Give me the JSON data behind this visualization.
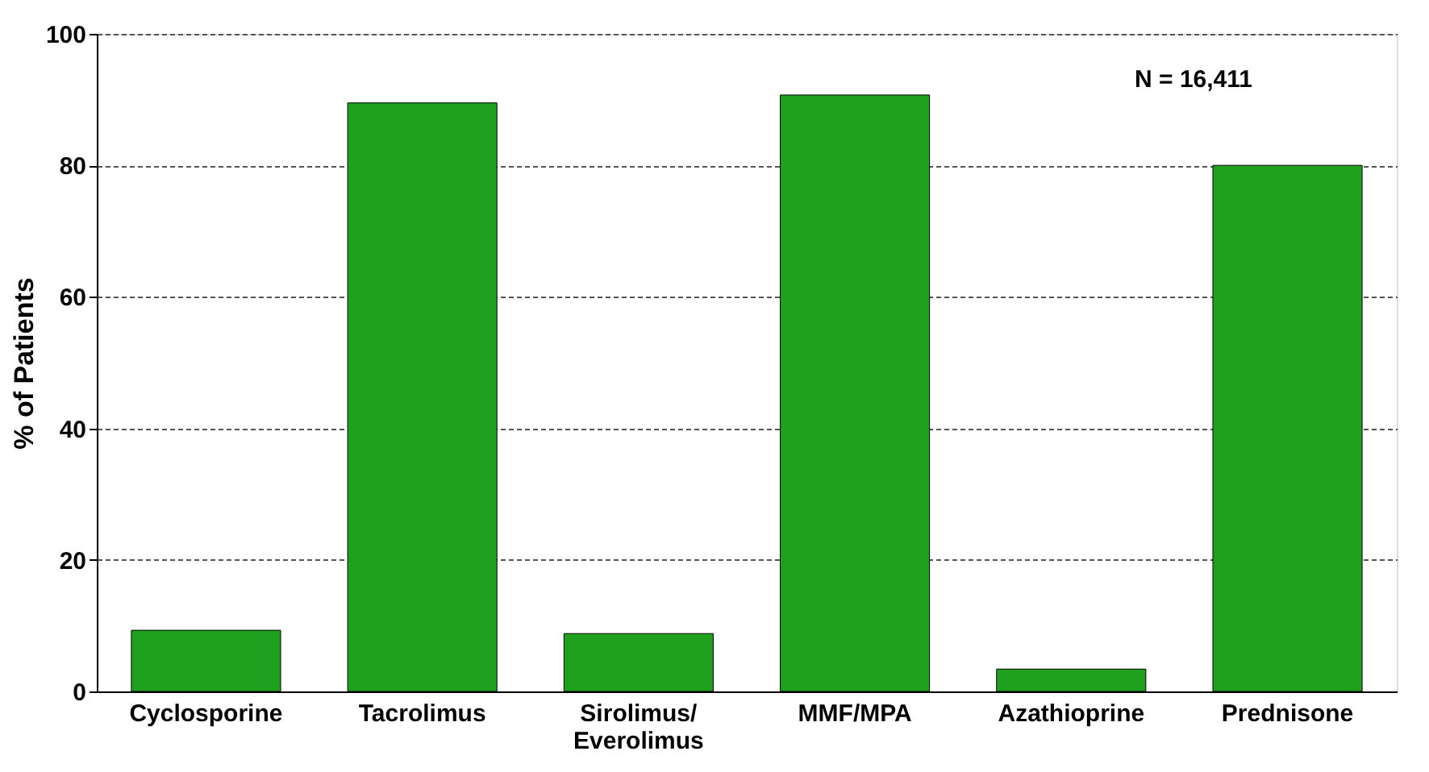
{
  "chart_data": {
    "type": "bar",
    "ylabel": "% of Patients",
    "categories": [
      "Cyclosporine",
      "Tacrolimus",
      "Sirolimus/ Everolimus",
      "MMF/MPA",
      "Azathioprine",
      "Prednisone"
    ],
    "values": [
      9.3,
      89.5,
      8.8,
      90.7,
      3.4,
      80
    ],
    "color": "#1fa01f",
    "ylim": [
      0,
      100
    ],
    "yticks": [
      0,
      20,
      40,
      60,
      80,
      100
    ],
    "grid": "y",
    "annotations": [
      "N = 16,411"
    ]
  }
}
